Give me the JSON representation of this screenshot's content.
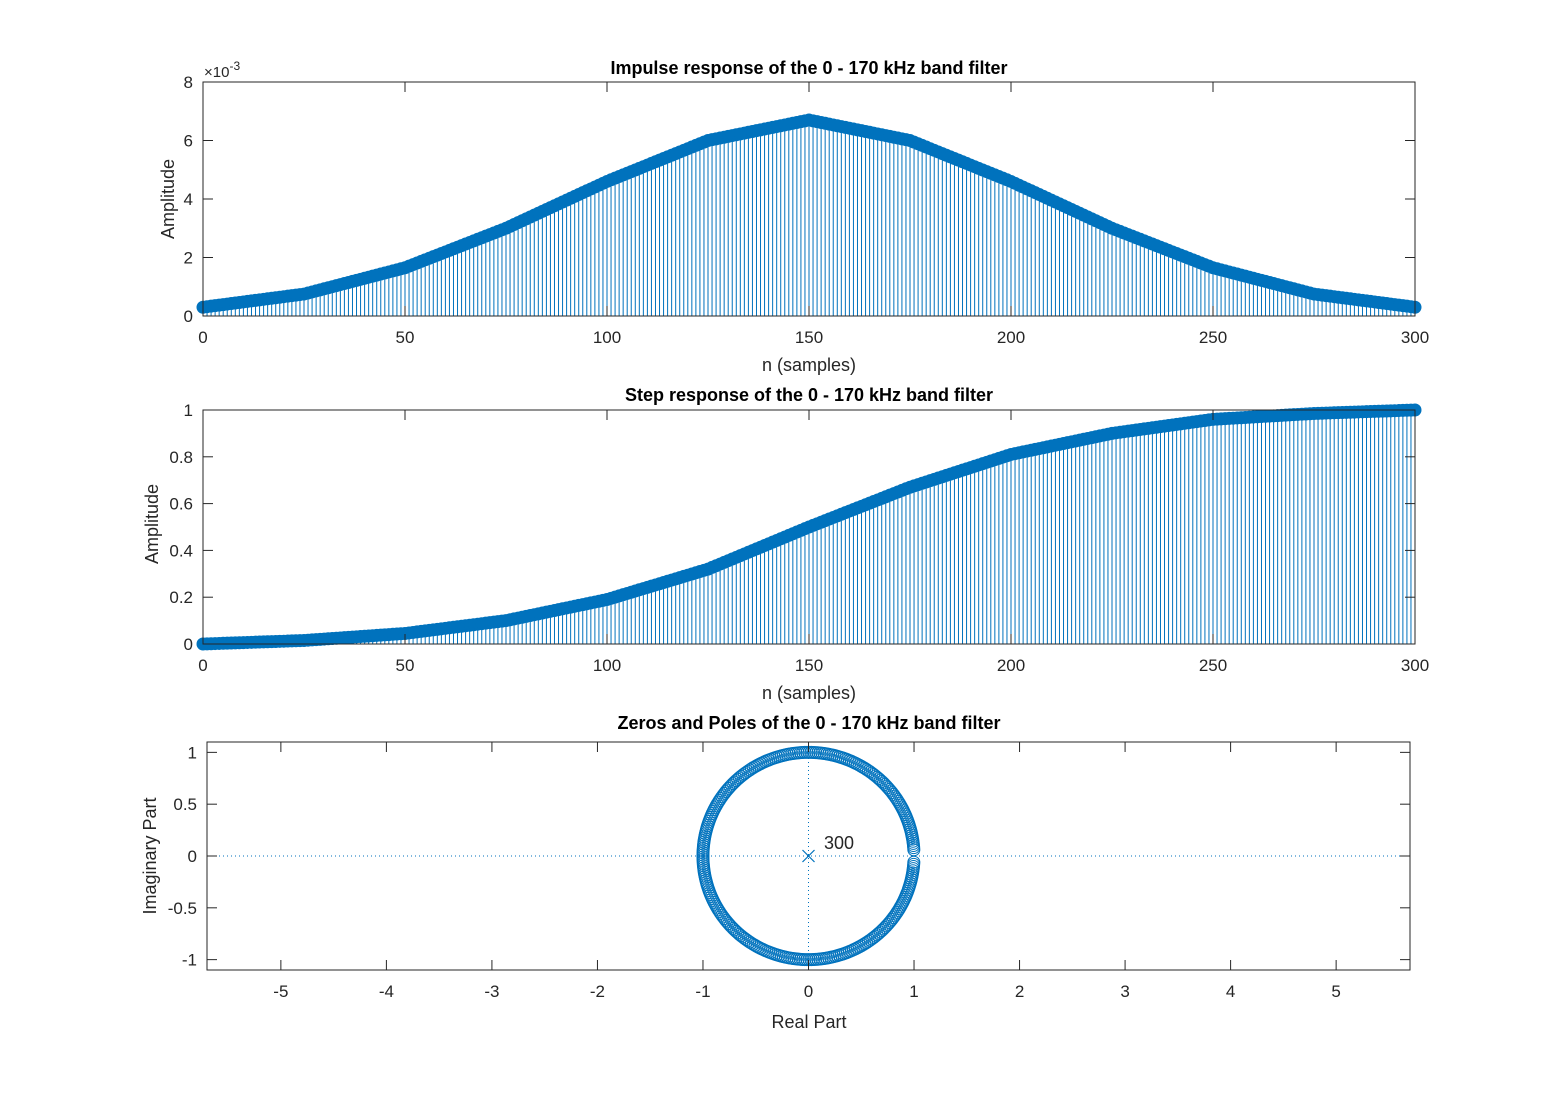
{
  "chart_data": [
    {
      "type": "stem",
      "title": "Impulse response of the 0 - 170 kHz band filter",
      "xlabel": "n (samples)",
      "ylabel": "Amplitude",
      "exponent_label": "×10",
      "exponent_power": "-3",
      "xlim": [
        0,
        300
      ],
      "ylim": [
        0,
        8
      ],
      "xticks": [
        "0",
        "50",
        "100",
        "150",
        "200",
        "250",
        "300"
      ],
      "yticks": [
        "0",
        "2",
        "4",
        "6",
        "8"
      ],
      "grid": false,
      "series": [
        {
          "color": "#0072BD",
          "marker": "filled-circle",
          "n": [
            0,
            25,
            50,
            75,
            100,
            125,
            150,
            175,
            200,
            225,
            250,
            275,
            300
          ],
          "values": [
            0.3,
            0.75,
            1.65,
            3.0,
            4.6,
            6.0,
            6.7,
            6.0,
            4.6,
            3.0,
            1.65,
            0.75,
            0.3
          ]
        }
      ]
    },
    {
      "type": "stem",
      "title": "Step response of the 0 - 170 kHz band filter",
      "xlabel": "n (samples)",
      "ylabel": "Amplitude",
      "xlim": [
        0,
        300
      ],
      "ylim": [
        0,
        1
      ],
      "xticks": [
        "0",
        "50",
        "100",
        "150",
        "200",
        "250",
        "300"
      ],
      "yticks": [
        "0",
        "0.2",
        "0.4",
        "0.6",
        "0.8",
        "1"
      ],
      "grid": false,
      "series": [
        {
          "color": "#0072BD",
          "marker": "filled-circle",
          "n": [
            0,
            25,
            50,
            75,
            100,
            125,
            150,
            175,
            200,
            225,
            250,
            275,
            300
          ],
          "values": [
            0.0,
            0.015,
            0.045,
            0.1,
            0.19,
            0.32,
            0.5,
            0.67,
            0.81,
            0.9,
            0.96,
            0.985,
            1.0
          ]
        }
      ]
    },
    {
      "type": "scatter",
      "title": "Zeros and Poles of the 0 - 170 kHz band filter",
      "xlabel": "Real Part",
      "ylabel": "Imaginary Part",
      "xlim": [
        -5.7,
        5.7
      ],
      "ylim": [
        -1.1,
        1.1
      ],
      "xticks": [
        "-5",
        "-4",
        "-3",
        "-2",
        "-1",
        "0",
        "1",
        "2",
        "3",
        "4",
        "5"
      ],
      "yticks": [
        "-1",
        "-0.5",
        "0",
        "0.5",
        "1"
      ],
      "grid": false,
      "pole": {
        "x": 0,
        "y": 0,
        "multiplicity_label": "300"
      },
      "zeros": {
        "shape": "unit-circle",
        "count": 300,
        "gap_near": [
          1,
          0
        ]
      },
      "color": "#0072BD"
    }
  ]
}
